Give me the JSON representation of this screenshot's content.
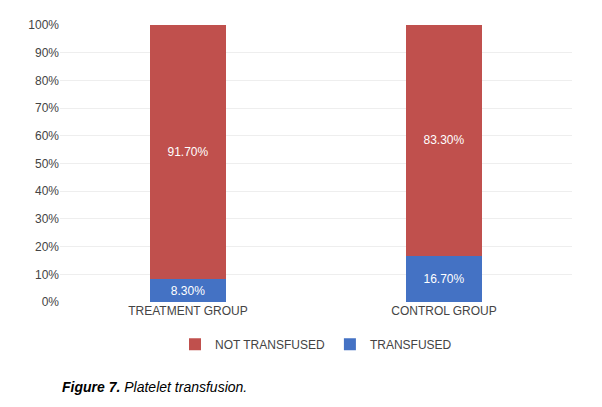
{
  "chart_data": {
    "type": "bar",
    "stacked": true,
    "categories": [
      "TREATMENT GROUP",
      "CONTROL GROUP"
    ],
    "series": [
      {
        "name": "TRANSFUSED",
        "color": "#4472C4",
        "values": [
          8.3,
          16.7
        ],
        "value_labels": [
          "8.30%",
          "16.70%"
        ]
      },
      {
        "name": "NOT TRANSFUSED",
        "color": "#C0504D",
        "values": [
          91.7,
          83.3
        ],
        "value_labels": [
          "91.70%",
          "83.30%"
        ]
      }
    ],
    "data_labels": true,
    "ylim": [
      0,
      100
    ],
    "yticks": [
      {
        "value": 0,
        "label": "0%"
      },
      {
        "value": 10,
        "label": "10%"
      },
      {
        "value": 20,
        "label": "20%"
      },
      {
        "value": 30,
        "label": "30%"
      },
      {
        "value": 40,
        "label": "40%"
      },
      {
        "value": 50,
        "label": "50%"
      },
      {
        "value": 60,
        "label": "60%"
      },
      {
        "value": 70,
        "label": "70%"
      },
      {
        "value": 80,
        "label": "80%"
      },
      {
        "value": 90,
        "label": "90%"
      },
      {
        "value": 100,
        "label": "100%"
      }
    ],
    "grid": true,
    "legend": "bottom",
    "annotations": [
      "Figure 7.",
      "Platelet transfusion."
    ]
  }
}
